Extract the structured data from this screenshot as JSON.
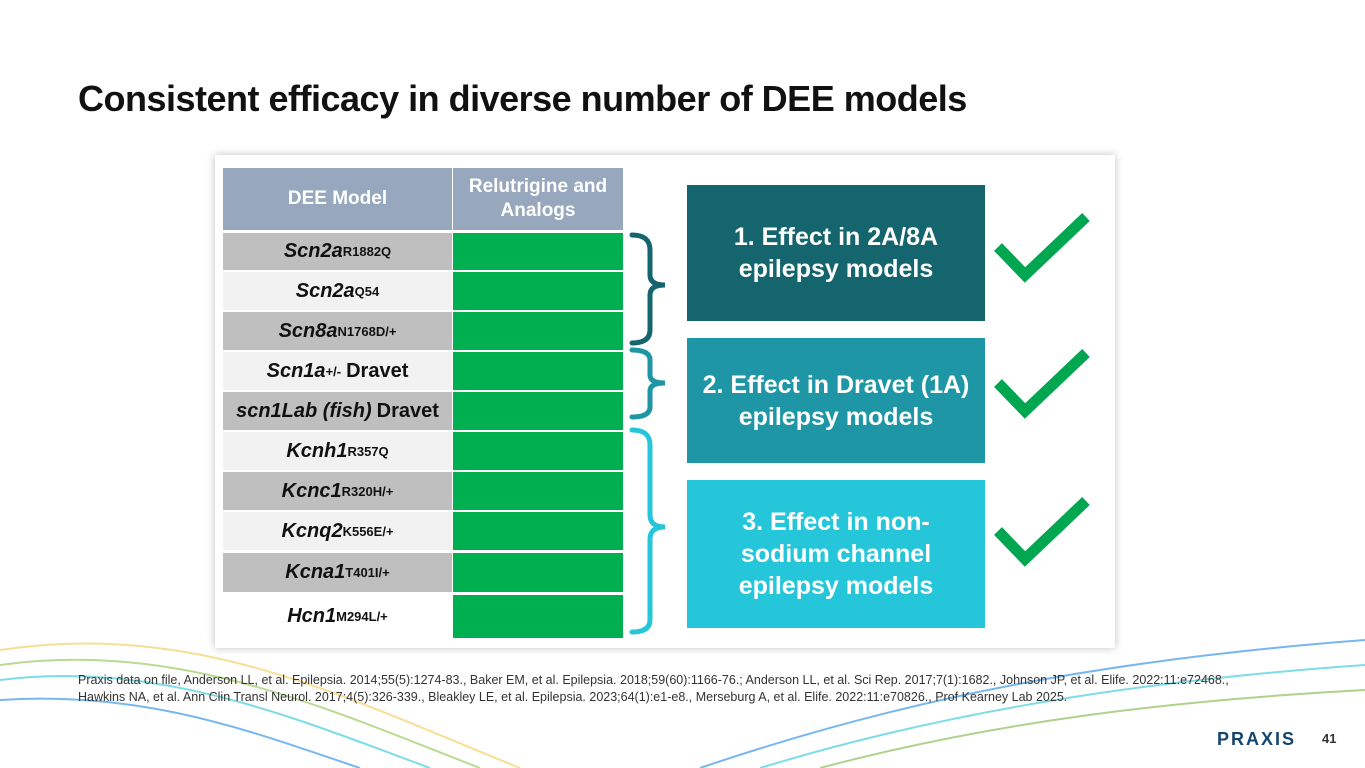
{
  "header": {
    "title": "Consistent efficacy in diverse number of DEE models"
  },
  "table": {
    "columns": [
      "DEE Model",
      "Relutrigine and Analogs"
    ],
    "rows": [
      {
        "gene": "Scn2a",
        "sup": "R1882Q"
      },
      {
        "gene": "Scn2a",
        "sup": "Q54"
      },
      {
        "gene": "Scn8a",
        "sup": "N1768D/+"
      },
      {
        "gene": "Scn1a",
        "sup": "+/-",
        "suffix": "Dravet"
      },
      {
        "gene": "scn1Lab (fish)",
        "suffix": "Dravet"
      },
      {
        "gene": "Kcnh1",
        "sup": "R357Q"
      },
      {
        "gene": "Kcnc1",
        "sup": "R320H/+"
      },
      {
        "gene": "Kcnq2",
        "sup": "K556E/+"
      },
      {
        "gene": "Kcna1",
        "sup": "T401I/+"
      },
      {
        "gene": "Hcn1",
        "sup": "M294L/+"
      }
    ]
  },
  "boxes": [
    "1. Effect in 2A/8A epilepsy models",
    "2. Effect in Dravet (1A) epilepsy models",
    "3. Effect in non-sodium channel epilepsy models"
  ],
  "footnote": "Praxis data on file, Anderson LL, et al. Epilepsia. 2014;55(5):1274-83., Baker EM, et al. Epilepsia. 2018;59(60):1166-76.; Anderson LL, et al. Sci Rep. 2017;7(1):1682., Johnson JP, et al. Elife. 2022:11:e72468., Hawkins NA, et al. Ann Clin Transl Neurol. 2017;4(5):326-339., Bleakley LE, et al. Epilepsia. 2023;64(1):e1-e8., Merseburg A, et al. Elife. 2022:11:e70826., Prof Kearney Lab 2025.",
  "footer": {
    "logo": "PRAXIS",
    "page": "41"
  }
}
